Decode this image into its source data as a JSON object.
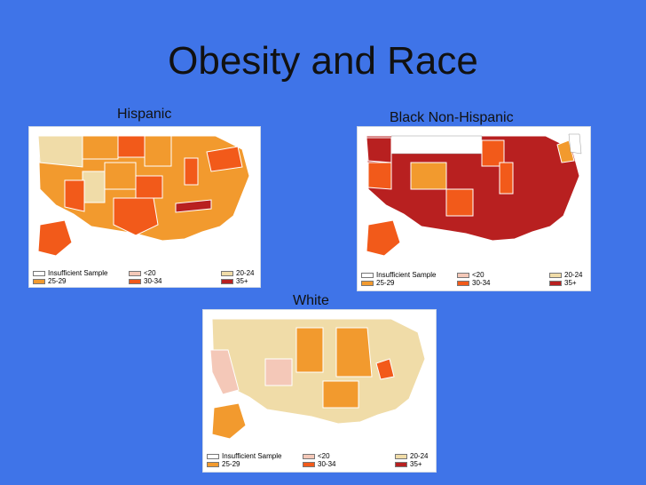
{
  "slide": {
    "title": "Obesity and Race"
  },
  "legend_items": [
    {
      "label": "Insufficient Sample",
      "color": "#ffffff"
    },
    {
      "label": "<20",
      "color": "#f4c8b8"
    },
    {
      "label": "20-24",
      "color": "#f0dca8"
    },
    {
      "label": "25-29",
      "color": "#f29a2e"
    },
    {
      "label": "30-34",
      "color": "#f25a1a"
    },
    {
      "label": "35+",
      "color": "#b82020"
    }
  ],
  "maps": {
    "hispanic": {
      "label": "Hispanic"
    },
    "black": {
      "label": "Black Non-Hispanic"
    },
    "white": {
      "label": "White"
    }
  }
}
